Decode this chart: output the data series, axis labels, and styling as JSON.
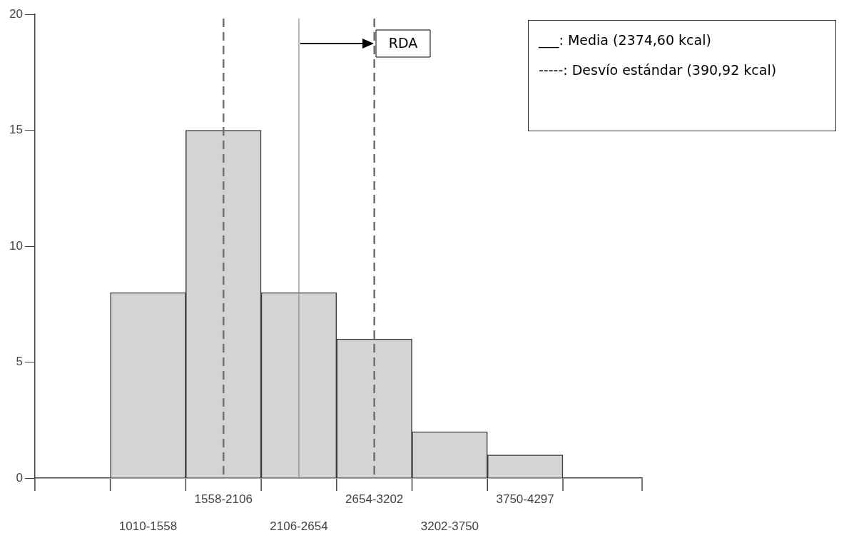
{
  "chart_data": {
    "type": "bar",
    "categories": [
      "1010-1558",
      "1558-2106",
      "2106-2654",
      "2654-3202",
      "3202-3750",
      "3750-4297"
    ],
    "values": [
      8,
      15,
      8,
      6,
      2,
      1
    ],
    "color": "#d4d4d4",
    "ylim": [
      0,
      20
    ],
    "yticks": [
      0,
      5,
      10,
      15,
      20
    ],
    "grid": false,
    "ref_lines": [
      {
        "axis": "x",
        "value": "1558-2106",
        "line_style": "dashed",
        "color": "#6e6e6e"
      },
      {
        "axis": "x",
        "value": "2106-2654",
        "line_style": "solid",
        "color": "#8a8a8a"
      },
      {
        "axis": "x",
        "value": "2654-3202",
        "line_style": "dashed",
        "color": "#6e6e6e"
      }
    ],
    "annotations": [
      "RDA",
      "___: Media (2374,60 kcal)",
      "-----: Desvío estándar (390,92 kcal)"
    ]
  }
}
